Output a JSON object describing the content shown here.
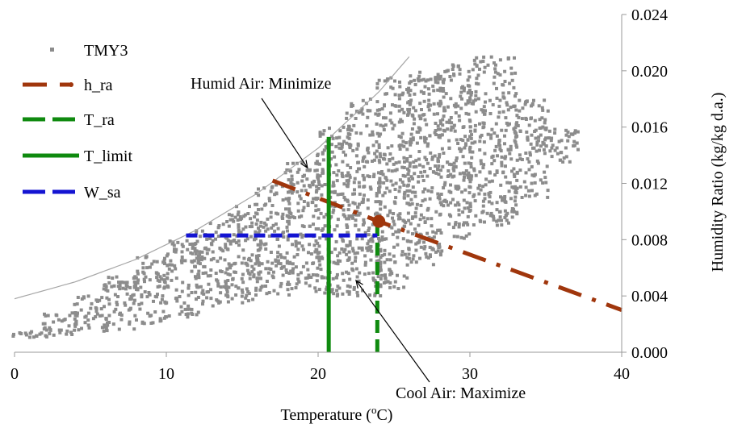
{
  "chart_data": {
    "type": "scatter",
    "title": "",
    "xlabel": "Temperature (oC)",
    "xlabel_main": "Temperature (",
    "xlabel_sup": "o",
    "xlabel_end": "C)",
    "ylabel": "Humidity Ratio (kg/kg d.a.)",
    "xlim": [
      0,
      40
    ],
    "ylim": [
      0,
      0.024
    ],
    "x_ticks": [
      0,
      10,
      20,
      30,
      40
    ],
    "x_tick_labels": [
      "0",
      "10",
      "20",
      "30",
      "40"
    ],
    "y_ticks": [
      0,
      0.004,
      0.008,
      0.012,
      0.016,
      0.02,
      0.024
    ],
    "y_tick_labels": [
      "0.000",
      "0.004",
      "0.008",
      "0.012",
      "0.016",
      "0.020",
      "0.024"
    ],
    "y_axis_position": "right",
    "grid": false,
    "legend_position": "top-left",
    "legend": [
      {
        "key": "tmy3",
        "label": "TMY3"
      },
      {
        "key": "h_ra",
        "label": "h_ra"
      },
      {
        "key": "t_ra",
        "label": "T_ra"
      },
      {
        "key": "t_limit",
        "label": "T_limit"
      },
      {
        "key": "w_sa",
        "label": "W_sa"
      }
    ],
    "colors": {
      "tmy3": "#8c8c8c",
      "saturation": "#a6a6a6",
      "h_ra": "#a0360c",
      "t_ra": "#0f8a0f",
      "t_limit": "#0f8a0f",
      "w_sa": "#1414d2"
    },
    "series": [
      {
        "name": "TMY3",
        "style": "square-markers",
        "clusters": [
          {
            "t_min": 0.0,
            "t_max": 2.0,
            "w_min": 0.001,
            "w_max": 0.0015
          },
          {
            "t_min": 2.0,
            "t_max": 4.0,
            "w_min": 0.0012,
            "w_max": 0.0028
          },
          {
            "t_min": 4.0,
            "t_max": 6.0,
            "w_min": 0.0015,
            "w_max": 0.004
          },
          {
            "t_min": 6.0,
            "t_max": 8.0,
            "w_min": 0.0015,
            "w_max": 0.0055
          },
          {
            "t_min": 8.0,
            "t_max": 10.0,
            "w_min": 0.002,
            "w_max": 0.0068
          },
          {
            "t_min": 10.0,
            "t_max": 12.0,
            "w_min": 0.0025,
            "w_max": 0.008
          },
          {
            "t_min": 12.0,
            "t_max": 14.0,
            "w_min": 0.003,
            "w_max": 0.0092
          },
          {
            "t_min": 14.0,
            "t_max": 16.0,
            "w_min": 0.0035,
            "w_max": 0.0105
          },
          {
            "t_min": 16.0,
            "t_max": 18.0,
            "w_min": 0.004,
            "w_max": 0.012
          },
          {
            "t_min": 18.0,
            "t_max": 20.0,
            "w_min": 0.0045,
            "w_max": 0.0135
          },
          {
            "t_min": 20.0,
            "t_max": 22.0,
            "w_min": 0.004,
            "w_max": 0.016
          },
          {
            "t_min": 22.0,
            "t_max": 24.0,
            "w_min": 0.004,
            "w_max": 0.018
          },
          {
            "t_min": 24.0,
            "t_max": 26.0,
            "w_min": 0.0045,
            "w_max": 0.0195
          },
          {
            "t_min": 26.0,
            "t_max": 28.0,
            "w_min": 0.006,
            "w_max": 0.02
          },
          {
            "t_min": 28.0,
            "t_max": 30.0,
            "w_min": 0.008,
            "w_max": 0.0205
          },
          {
            "t_min": 30.0,
            "t_max": 33.0,
            "w_min": 0.009,
            "w_max": 0.021
          },
          {
            "t_min": 33.0,
            "t_max": 35.0,
            "w_min": 0.011,
            "w_max": 0.018
          },
          {
            "t_min": 35.0,
            "t_max": 37.0,
            "w_min": 0.0135,
            "w_max": 0.016
          }
        ]
      },
      {
        "name": "Saturation",
        "style": "thin-line",
        "x": [
          0,
          4,
          8,
          12,
          16,
          20,
          24,
          26
        ],
        "y": [
          0.0038,
          0.005,
          0.0066,
          0.0087,
          0.0113,
          0.0145,
          0.0185,
          0.021
        ]
      },
      {
        "name": "h_ra",
        "style": "dash-dot",
        "x": [
          17,
          24,
          40
        ],
        "y": [
          0.0122,
          0.0093,
          0.003
        ]
      },
      {
        "name": "T_ra",
        "style": "dashed-vertical",
        "x": [
          23.9,
          23.9
        ],
        "y": [
          0.0,
          0.0093
        ]
      },
      {
        "name": "T_limit",
        "style": "solid-vertical",
        "x": [
          20.7,
          20.7
        ],
        "y": [
          0.0,
          0.0153
        ]
      },
      {
        "name": "W_sa",
        "style": "dashed-horizontal",
        "x": [
          11.3,
          23.9
        ],
        "y": [
          0.0083,
          0.0083
        ]
      },
      {
        "name": "Return air state",
        "style": "dot",
        "x": [
          24.0
        ],
        "y": [
          0.0093
        ]
      }
    ],
    "annotations": [
      {
        "key": "humid",
        "text": "Humid Air: Minimize",
        "target": {
          "x": 19.3,
          "y": 0.0131
        }
      },
      {
        "key": "cool",
        "text": "Cool Air: Maximize",
        "target": {
          "x": 22.5,
          "y": 0.0051
        }
      }
    ]
  }
}
